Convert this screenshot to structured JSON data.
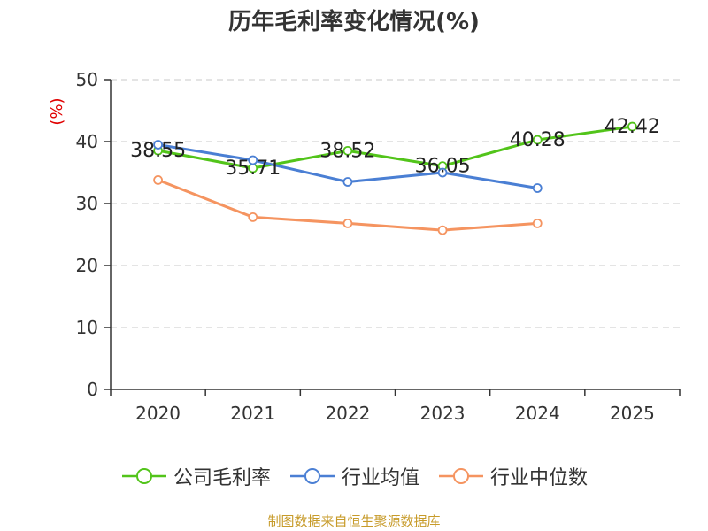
{
  "chart_data": {
    "type": "line",
    "title": "历年毛利率变化情况(%)",
    "ylabel": "(%)",
    "xlabel": "",
    "ylim": [
      0,
      50
    ],
    "yticks": [
      0,
      10,
      20,
      30,
      40,
      50
    ],
    "categories": [
      "2020",
      "2021",
      "2022",
      "2023",
      "2024",
      "2025"
    ],
    "grid": true,
    "legend_position": "bottom",
    "series": [
      {
        "name": "公司毛利率",
        "color": "#52c41a",
        "values": [
          38.55,
          35.71,
          38.52,
          36.05,
          40.28,
          42.42
        ],
        "labels": [
          "38.55",
          "35.71",
          "38.52",
          "36.05",
          "40.28",
          "42.42"
        ]
      },
      {
        "name": "行业均值",
        "color": "#4a7fd4",
        "values": [
          39.5,
          37.0,
          33.5,
          35.0,
          32.5,
          null
        ]
      },
      {
        "name": "行业中位数",
        "color": "#f59460",
        "values": [
          33.8,
          27.8,
          26.8,
          25.7,
          26.8,
          null
        ]
      }
    ]
  },
  "source": "制图数据来自恒生聚源数据库"
}
